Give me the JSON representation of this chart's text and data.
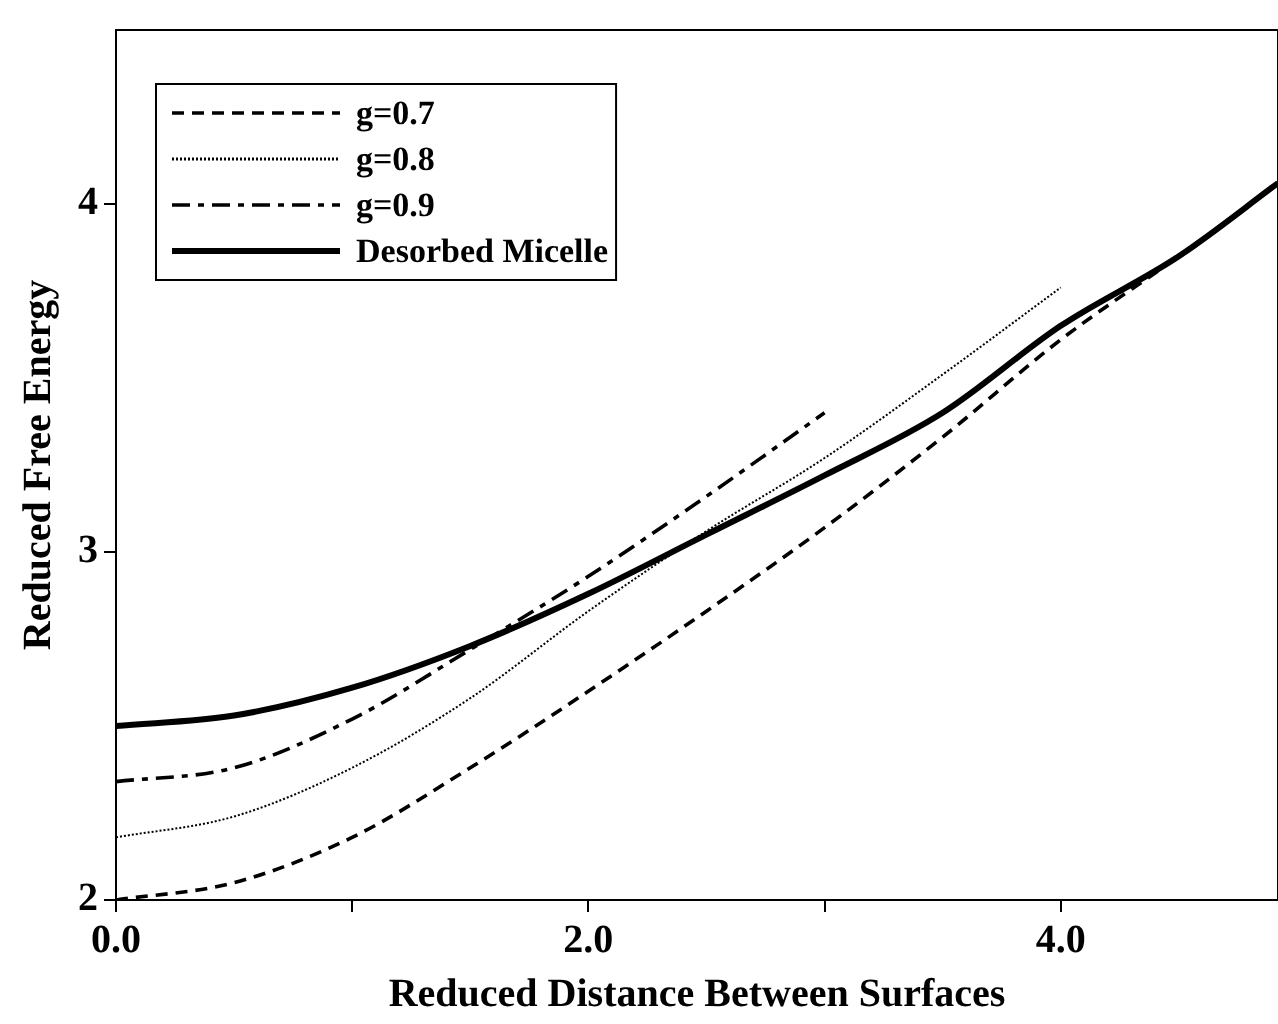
{
  "chart_data": {
    "type": "line",
    "xlabel": "Reduced Distance Between Surfaces",
    "ylabel": "Reduced Free Energy",
    "xlim": [
      0,
      4.92
    ],
    "ylim": [
      2,
      4.5
    ],
    "xticks": [
      {
        "value": 0,
        "label": "0.0"
      },
      {
        "value": 1,
        "label": null
      },
      {
        "value": 2,
        "label": "2.0"
      },
      {
        "value": 3,
        "label": null
      },
      {
        "value": 4,
        "label": "4.0"
      }
    ],
    "yticks": [
      2,
      3,
      4
    ],
    "grid": false,
    "legend": "top left",
    "marker": "none",
    "series": [
      {
        "name": "g=0.7",
        "color": "#000000",
        "line_style": "dashed",
        "x": [
          0,
          0.5,
          1,
          1.5,
          2,
          2.5,
          3,
          3.5,
          4,
          4.5,
          4.92
        ],
        "values": [
          2.0,
          2.05,
          2.18,
          2.38,
          2.6,
          2.83,
          3.07,
          3.33,
          3.61,
          3.85,
          4.06
        ]
      },
      {
        "name": "g=0.8",
        "color": "#000000",
        "line_style": "dotted",
        "x": [
          0,
          0.5,
          1,
          1.5,
          2,
          2.5,
          3,
          3.5,
          4
        ],
        "values": [
          2.18,
          2.24,
          2.38,
          2.58,
          2.83,
          3.06,
          3.27,
          3.51,
          3.76
        ]
      },
      {
        "name": "g=0.9",
        "color": "#000000",
        "line_style": "dashdot",
        "x": [
          0,
          0.5,
          1,
          1.5,
          2,
          2.5,
          3
        ],
        "values": [
          2.34,
          2.38,
          2.52,
          2.72,
          2.93,
          3.16,
          3.4
        ]
      },
      {
        "name": "Desorbed Micelle",
        "color": "#000000",
        "line_style": "solid",
        "x": [
          0,
          0.5,
          1,
          1.5,
          2,
          2.5,
          3,
          3.5,
          4,
          4.5,
          4.92
        ],
        "values": [
          2.5,
          2.53,
          2.61,
          2.73,
          2.88,
          3.05,
          3.22,
          3.4,
          3.65,
          3.85,
          4.06
        ]
      }
    ]
  }
}
